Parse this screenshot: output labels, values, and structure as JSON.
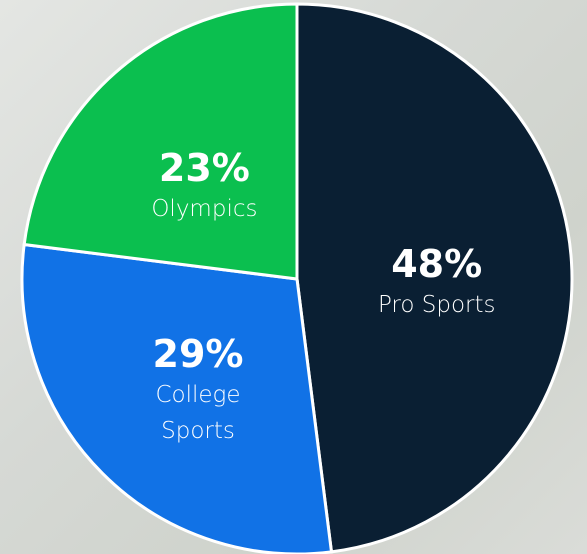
{
  "chart_data": {
    "type": "pie",
    "categories": [
      "Pro Sports",
      "College Sports",
      "Olympics"
    ],
    "values": [
      48,
      29,
      23
    ],
    "value_labels": [
      "48%",
      "29%",
      "23%"
    ],
    "colors": [
      "#0a1f33",
      "#1172e6",
      "#0bbf4f"
    ]
  }
}
